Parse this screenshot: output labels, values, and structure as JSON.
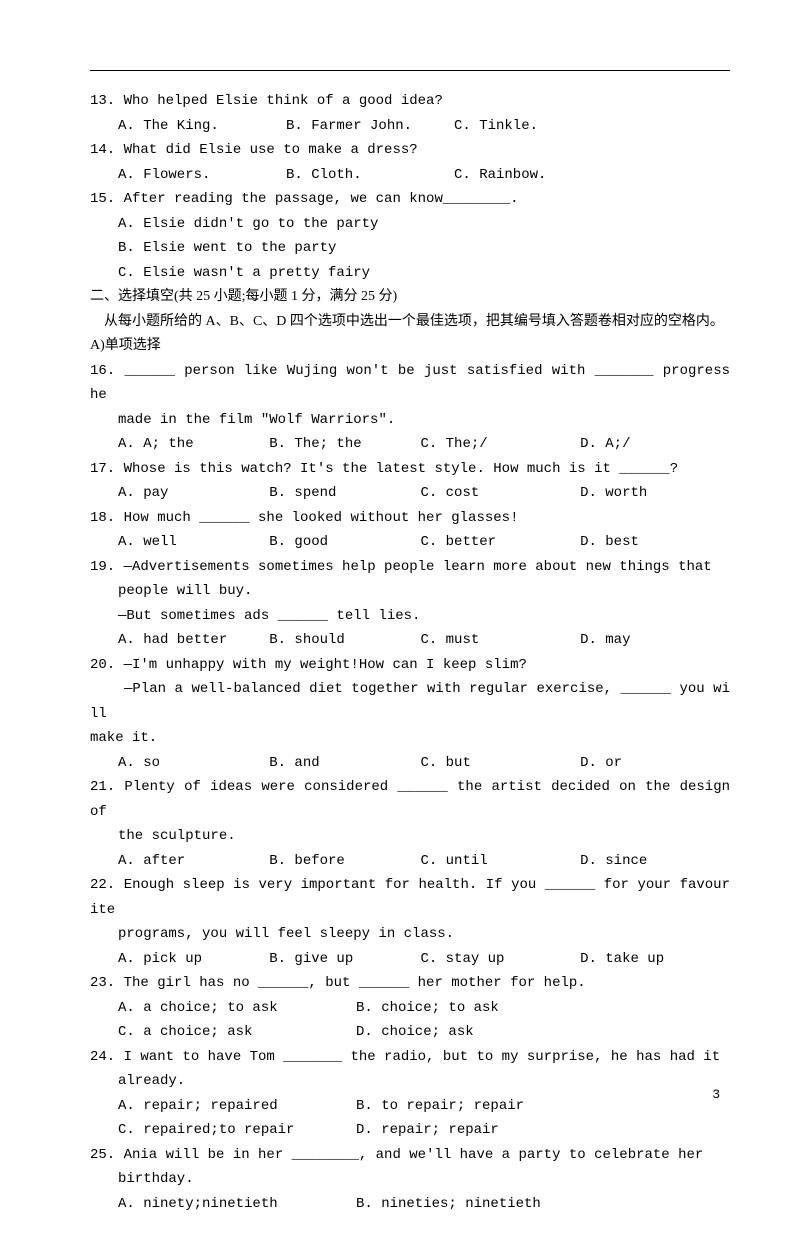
{
  "q13": {
    "stem": "13. Who helped Elsie think of a good idea?",
    "a": "A. The King.",
    "b": "B. Farmer John.",
    "c": "C. Tinkle."
  },
  "q14": {
    "stem": "14. What did Elsie use to make a dress?",
    "a": "A. Flowers.",
    "b": "B. Cloth.",
    "c": "C. Rainbow."
  },
  "q15": {
    "stem": "15. After reading the passage, we can know________.",
    "a": "A. Elsie didn't go to the party",
    "b": "B. Elsie went to the party",
    "c": "C. Elsie wasn't a pretty fairy"
  },
  "sec2_title": "二、选择填空(共 25 小题;每小题 1 分，满分 25 分)",
  "sec2_desc": "    从每小题所给的 A、B、C、D 四个选项中选出一个最佳选项，把其编号填入答题卷相对应的空格内。",
  "sec2_part": "A)单项选择",
  "q16": {
    "l1": "16. ______ person like Wujing won't be just satisfied with _______ progress he",
    "l2": "made in the film \"Wolf Warriors\".",
    "opts": "A. A; the         B. The; the       C. The;/           D. A;/"
  },
  "q17": {
    "stem": "17. Whose is this watch? It's the latest style. How much is it ______?",
    "opts": "A. pay            B. spend          C. cost            D. worth"
  },
  "q18": {
    "stem": "18. How much ______ she looked without her glasses!",
    "opts": "A. well           B. good           C. better          D. best"
  },
  "q19": {
    "l1": "19. —Advertisements sometimes help people learn more about new things that",
    "l2": "people will buy.",
    "l3": "—But sometimes ads ______ tell lies.",
    "opts": "A. had better     B. should         C. must            D. may"
  },
  "q20": {
    "l1": "20. —I'm unhappy with my weight!How can I keep slim?",
    "l2": "    —Plan a well-balanced diet together with regular exercise, ______ you will",
    "l3": "make it.",
    "opts": "A. so             B. and            C. but             D. or"
  },
  "q21": {
    "l1": "21. Plenty of ideas were considered ______ the artist decided on the design of",
    "l2": "the sculpture.",
    "opts": "A. after          B. before         C. until           D. since"
  },
  "q22": {
    "l1": "22. Enough sleep is very important for health. If you ______ for your favourite",
    "l2": "programs, you will feel sleepy in class.",
    "opts": "A. pick up        B. give up        C. stay up         D. take up"
  },
  "q23": {
    "stem": "23. The girl has no ______, but ______ her mother for help.",
    "opts1": "A. a choice; to ask",
    "opts2": "B. choice; to ask",
    "opts3": "C. a choice; ask",
    "opts4": "D. choice; ask"
  },
  "q24": {
    "l1": "24. I want to have Tom _______ the radio, but to my surprise, he has had it",
    "l2": "already.",
    "opts1": "A. repair; repaired",
    "opts2": "B. to repair; repair",
    "opts3": "C. repaired;to repair",
    "opts4": "D. repair; repair"
  },
  "q25": {
    "l1": "25. Ania will be in her ________, and we'll have a party to celebrate her",
    "l2": "birthday.",
    "opts1": "A. ninety;ninetieth",
    "opts2": "B. nineties; ninetieth"
  },
  "pagenum": "3"
}
